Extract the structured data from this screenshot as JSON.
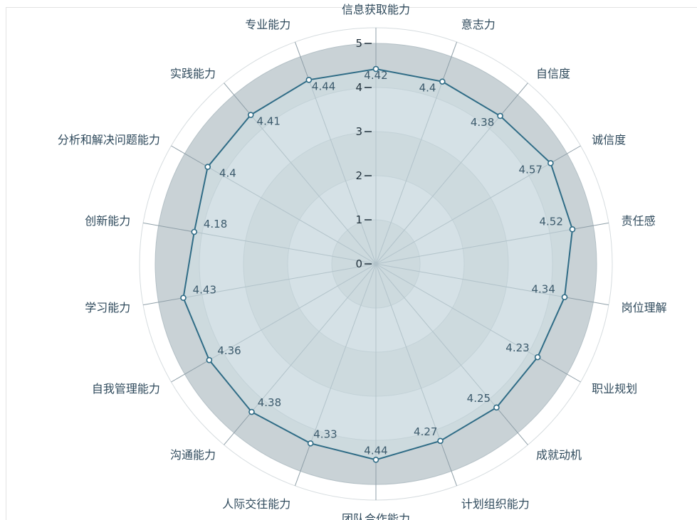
{
  "chart_data": {
    "type": "radar",
    "categories": [
      "信息获取能力",
      "意志力",
      "自信度",
      "诚信度",
      "责任感",
      "岗位理解",
      "职业规划",
      "成就动机",
      "计划组织能力",
      "团队合作能力",
      "人际交往能力",
      "沟通能力",
      "自我管理能力",
      "学习能力",
      "创新能力",
      "分析和解决问题能力",
      "实践能力",
      "专业能力"
    ],
    "series": [
      {
        "values": [
          4.42,
          4.4,
          4.38,
          4.57,
          4.52,
          4.34,
          4.23,
          4.25,
          4.27,
          4.44,
          4.33,
          4.38,
          4.36,
          4.43,
          4.18,
          4.4,
          4.41,
          4.44
        ],
        "value_labels": [
          "4.42",
          "4.4",
          "4.38",
          "4.57",
          "4.52",
          "4.34",
          "4.23",
          "4.25",
          "4.27",
          "4.44",
          "4.33",
          "4.38",
          "4.36",
          "4.43",
          "4.18",
          "4.4",
          "4.41",
          "4.44"
        ]
      }
    ],
    "rlim": [
      0,
      5
    ],
    "ticks": [
      0,
      1,
      2,
      3,
      4,
      5
    ],
    "tick_labels": [
      "0",
      "1",
      "2",
      "3",
      "4",
      "5"
    ],
    "grid": true,
    "colors": {
      "band_dark": "#c9d2d6",
      "band_light": "#dce3e6",
      "outer_ring": "#ffffff",
      "spoke": "#8f9fa8",
      "fill": "#cfe0e6",
      "line": "#2f6c86"
    }
  }
}
